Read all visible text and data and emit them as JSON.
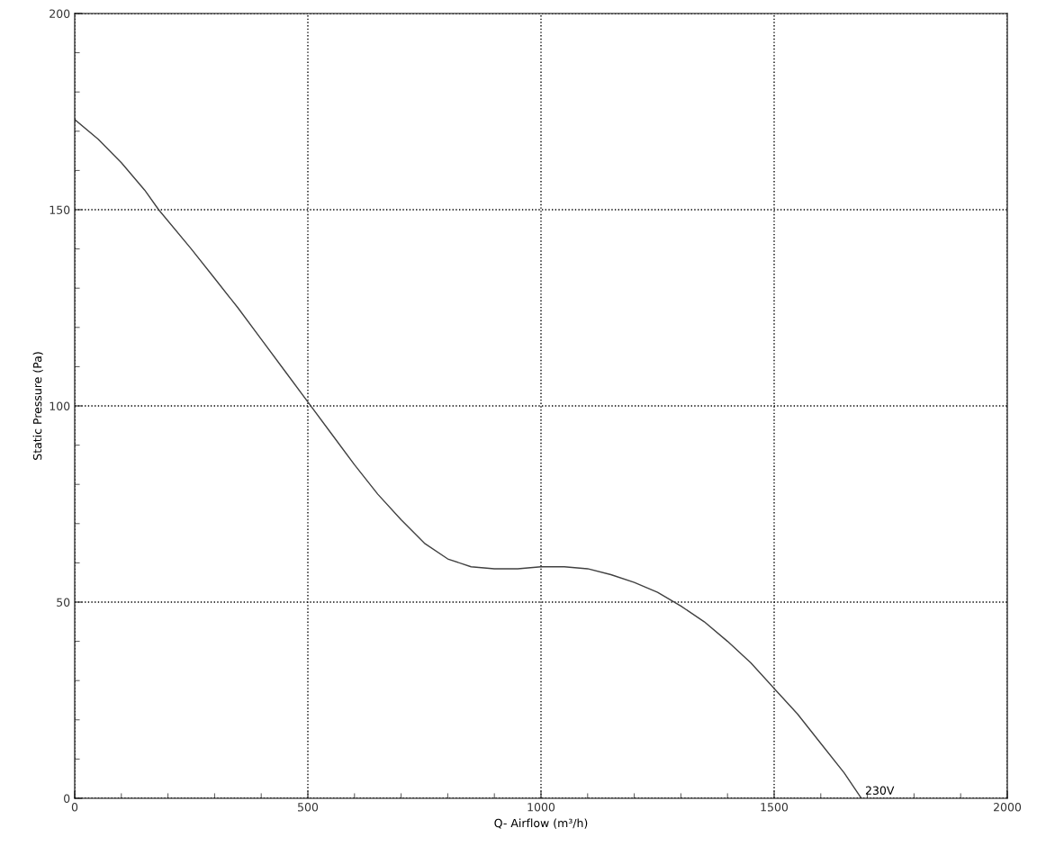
{
  "chart_data": {
    "type": "line",
    "xlabel": "Q- Airflow (m³/h)",
    "ylabel": "Static Pressure (Pa)",
    "series": [
      {
        "color": "#404040",
        "x": [
          0,
          50,
          100,
          150,
          180,
          250,
          300,
          350,
          400,
          450,
          500,
          550,
          600,
          650,
          700,
          750,
          800,
          850,
          900,
          950,
          1000,
          1050,
          1100,
          1150,
          1200,
          1250,
          1300,
          1350,
          1400,
          1450,
          1500,
          1550,
          1600,
          1650,
          1687
        ],
        "values": [
          173,
          168,
          162,
          155,
          150,
          140,
          132.5,
          125,
          117,
          109,
          101,
          93,
          85,
          77.5,
          71,
          65,
          61,
          59,
          58.5,
          58.5,
          59,
          59,
          58.5,
          57,
          55,
          52.5,
          49,
          45,
          40,
          34.5,
          28,
          21.5,
          14,
          6.5,
          0
        ]
      }
    ],
    "annotations": [
      {
        "text": "230V",
        "x": 1687,
        "y": 0
      }
    ],
    "xlim": [
      0,
      2000
    ],
    "xticks": [
      0,
      500,
      1000,
      1500,
      2000
    ],
    "ylim": [
      0,
      200
    ],
    "yticks": [
      0,
      50,
      100,
      150,
      200
    ],
    "grid": true,
    "marker": "none",
    "line_style": "solid"
  }
}
